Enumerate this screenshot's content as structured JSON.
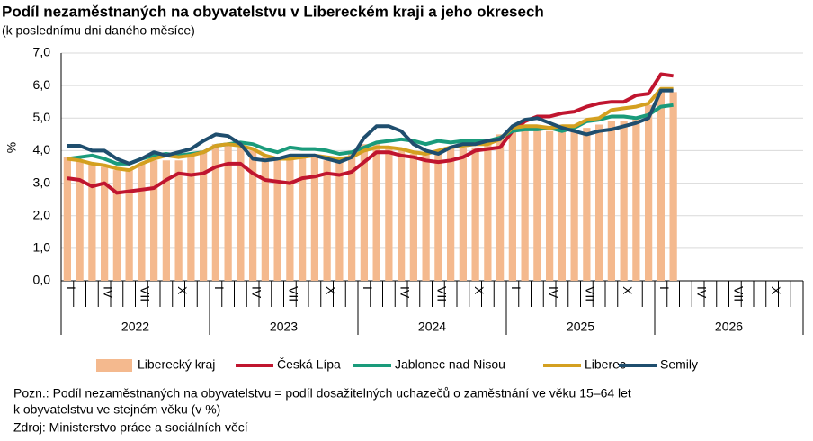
{
  "chart_data": {
    "type": "bar",
    "title": "Podíl nezaměstnaných na obyvatelstvu v Libereckém kraji a jeho okresech",
    "subtitle": "(k poslednímu dni daného měsíce)",
    "y_label": "%",
    "categories": [
      "I",
      null,
      null,
      "IV",
      null,
      null,
      "VII",
      null,
      null,
      "X",
      null,
      null,
      "I",
      null,
      null,
      "IV",
      null,
      null,
      "VII",
      null,
      null,
      "X",
      null,
      null,
      "I",
      null,
      null,
      "IV",
      null,
      null,
      "VII",
      null,
      null,
      "X",
      null,
      null,
      "I",
      null,
      null,
      "IV",
      null,
      null,
      "VII",
      null,
      null,
      "X",
      null,
      null,
      "I",
      null,
      null,
      "IV",
      null,
      null,
      "VII",
      null,
      null,
      "X",
      null,
      null
    ],
    "years": [
      "2022",
      "2023",
      "2024",
      "2025",
      "2026"
    ],
    "ylim": [
      0,
      7
    ],
    "yticks": [
      {
        "value": 0,
        "label": "0,0"
      },
      {
        "value": 1,
        "label": "1,0"
      },
      {
        "value": 2,
        "label": "2,0"
      },
      {
        "value": 3,
        "label": "3,0"
      },
      {
        "value": 4,
        "label": "4,0"
      },
      {
        "value": 5,
        "label": "5,0"
      },
      {
        "value": 6,
        "label": "6,0"
      },
      {
        "value": 7,
        "label": "7,0"
      }
    ],
    "grid": true,
    "series": [
      {
        "name": "Liberecký kraj",
        "type": "bar",
        "color": "#f4b98e",
        "values": [
          3.8,
          3.7,
          3.6,
          3.5,
          3.4,
          3.4,
          3.6,
          3.7,
          3.7,
          3.7,
          3.8,
          4.0,
          4.2,
          4.2,
          4.1,
          4.0,
          3.8,
          3.7,
          3.8,
          3.8,
          3.8,
          3.7,
          3.8,
          4.0,
          4.2,
          4.2,
          4.1,
          4.0,
          3.9,
          3.9,
          4.0,
          4.1,
          4.1,
          4.1,
          4.2,
          4.5,
          4.7,
          4.7,
          4.7,
          4.6,
          4.6,
          4.6,
          4.7,
          4.8,
          4.9,
          4.9,
          5.0,
          5.4,
          5.8,
          5.8,
          null,
          null,
          null,
          null,
          null,
          null,
          null,
          null,
          null,
          null
        ]
      },
      {
        "name": "Česká Lípa",
        "type": "line",
        "color": "#c0152f",
        "values": [
          3.15,
          3.1,
          2.9,
          3.0,
          2.7,
          2.75,
          2.8,
          2.85,
          3.1,
          3.3,
          3.25,
          3.3,
          3.5,
          3.6,
          3.6,
          3.3,
          3.1,
          3.05,
          3.0,
          3.15,
          3.2,
          3.3,
          3.25,
          3.35,
          3.65,
          3.95,
          3.95,
          3.85,
          3.8,
          3.7,
          3.65,
          3.7,
          3.8,
          4.0,
          4.05,
          4.1,
          4.6,
          4.9,
          5.05,
          5.05,
          5.15,
          5.2,
          5.35,
          5.45,
          5.5,
          5.5,
          5.7,
          5.75,
          6.35,
          6.3,
          null,
          null,
          null,
          null,
          null,
          null,
          null,
          null,
          null,
          null
        ]
      },
      {
        "name": "Jablonec nad Nisou",
        "type": "line",
        "color": "#1a9b7b",
        "values": [
          3.75,
          3.8,
          3.85,
          3.75,
          3.6,
          3.6,
          3.75,
          3.85,
          3.9,
          3.85,
          3.9,
          3.95,
          4.15,
          4.2,
          4.25,
          4.2,
          4.05,
          3.95,
          4.1,
          4.05,
          4.05,
          4.0,
          3.9,
          3.95,
          4.1,
          4.25,
          4.3,
          4.35,
          4.3,
          4.2,
          4.3,
          4.25,
          4.3,
          4.3,
          4.3,
          4.4,
          4.6,
          4.65,
          4.65,
          4.7,
          4.6,
          4.7,
          4.9,
          4.95,
          5.05,
          5.05,
          5.0,
          5.1,
          5.35,
          5.4,
          null,
          null,
          null,
          null,
          null,
          null,
          null,
          null,
          null,
          null
        ]
      },
      {
        "name": "Liberec",
        "type": "line",
        "color": "#d4a020",
        "values": [
          3.75,
          3.7,
          3.6,
          3.55,
          3.45,
          3.4,
          3.6,
          3.75,
          3.85,
          3.8,
          3.85,
          3.95,
          4.15,
          4.2,
          4.15,
          4.05,
          3.85,
          3.75,
          3.75,
          3.8,
          3.85,
          3.8,
          3.75,
          3.8,
          4.0,
          4.1,
          4.1,
          4.05,
          3.95,
          3.9,
          4.0,
          4.1,
          4.15,
          4.2,
          4.2,
          4.35,
          4.7,
          4.75,
          4.75,
          4.7,
          4.75,
          4.75,
          4.95,
          5.0,
          5.25,
          5.3,
          5.35,
          5.45,
          5.9,
          5.9,
          null,
          null,
          null,
          null,
          null,
          null,
          null,
          null,
          null,
          null
        ]
      },
      {
        "name": "Semily",
        "type": "line",
        "color": "#1f4e6e",
        "values": [
          4.15,
          4.15,
          4.0,
          4.0,
          3.75,
          3.6,
          3.75,
          3.95,
          3.85,
          3.95,
          4.05,
          4.3,
          4.5,
          4.45,
          4.2,
          3.75,
          3.7,
          3.75,
          3.85,
          3.85,
          3.85,
          3.75,
          3.65,
          3.8,
          4.4,
          4.75,
          4.75,
          4.6,
          4.2,
          4.0,
          3.9,
          4.1,
          4.2,
          4.2,
          4.3,
          4.35,
          4.75,
          4.95,
          5.0,
          4.85,
          4.7,
          4.6,
          4.5,
          4.6,
          4.65,
          4.75,
          4.85,
          5.0,
          5.85,
          5.85,
          null,
          null,
          null,
          null,
          null,
          null,
          null,
          null,
          null,
          null
        ]
      }
    ],
    "notes": [
      "Pozn.: Podíl nezaměstnaných na obyvatelstvu  = podíl dosažitelných uchazečů o zaměstnání  ve věku 15–64 let",
      "k obyvatelstvu  ve stejném věku (v %)",
      "Zdroj: Ministerstvo  práce a sociálních věcí"
    ]
  }
}
